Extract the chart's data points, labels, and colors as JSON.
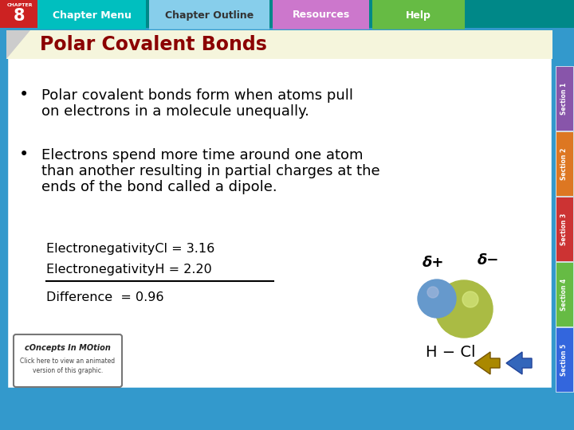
{
  "title": "Polar Covalent Bonds",
  "title_color": "#8B0000",
  "title_bg_color": "#F5F5DC",
  "background_color": "#3399CC",
  "bullet1_line1": "Polar covalent bonds form when atoms pull",
  "bullet1_line2": "on electrons in a molecule unequally.",
  "bullet2_line1": "Electrons spend more time around one atom",
  "bullet2_line2": "than another resulting in partial charges at the",
  "bullet2_line3": "ends of the bond called a dipole.",
  "en_line1": "ElectronegativityCl = 3.16",
  "en_line2": "ElectronegativityH = 2.20",
  "en_line3": "Difference  = 0.96",
  "delta_plus": "δ+",
  "delta_minus": "δ−",
  "hcl_label": "H − Cl",
  "nav_tabs": [
    "Chapter Menu",
    "Chapter Outline",
    "Resources",
    "Help"
  ],
  "tab_colors": [
    "#00BFBF",
    "#87CEEB",
    "#CC77CC",
    "#66BB44"
  ],
  "tab_text_colors": [
    "#FFFFFF",
    "#333333",
    "#FFFFFF",
    "#FFFFFF"
  ],
  "chapter_num": "8",
  "chapter_bg": "#CC2222",
  "section_labels": [
    "Section 1",
    "Section 2",
    "Section 3",
    "Section 4",
    "Section 5"
  ],
  "section_colors": [
    "#8855AA",
    "#DD7722",
    "#CC3333",
    "#66BB44",
    "#3366DD"
  ],
  "atom_h_color": "#6699CC",
  "atom_cl_color": "#AABB44",
  "main_border_color": "#3399CC",
  "content_bg": "#FFFFFF"
}
